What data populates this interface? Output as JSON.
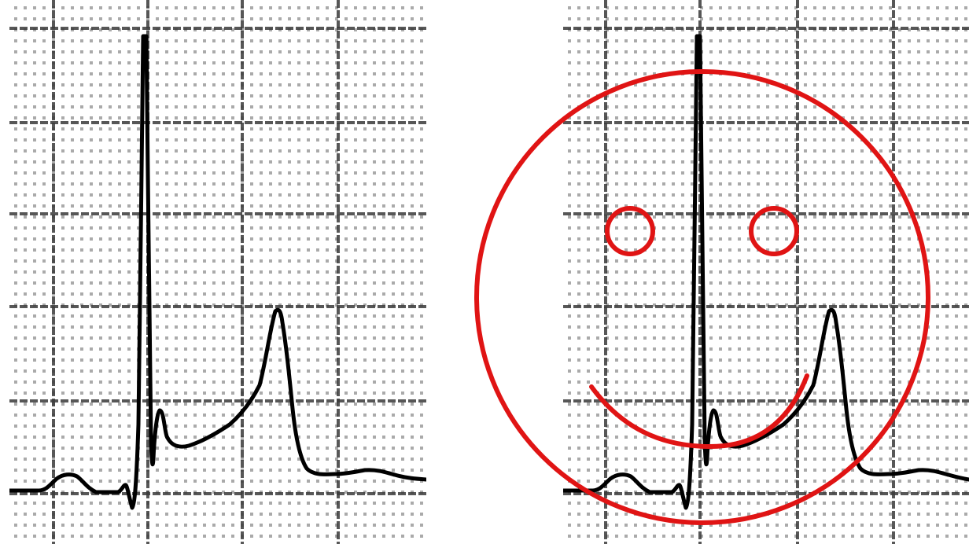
{
  "figure": {
    "background_color": "#ffffff",
    "panels": [
      {
        "name": "original-ecg",
        "content": "ecg-complex-on-grid-paper"
      },
      {
        "name": "ecg-with-smiley",
        "content": "ecg-complex-on-grid-paper-with-smiley-face"
      }
    ]
  },
  "colors": {
    "grid_major": "#3a3a3a",
    "grid_dot": "#8e8e8e",
    "trace": "#000000",
    "smiley": "#e01414"
  },
  "icons": {
    "smiley": "smiley-face-icon"
  }
}
